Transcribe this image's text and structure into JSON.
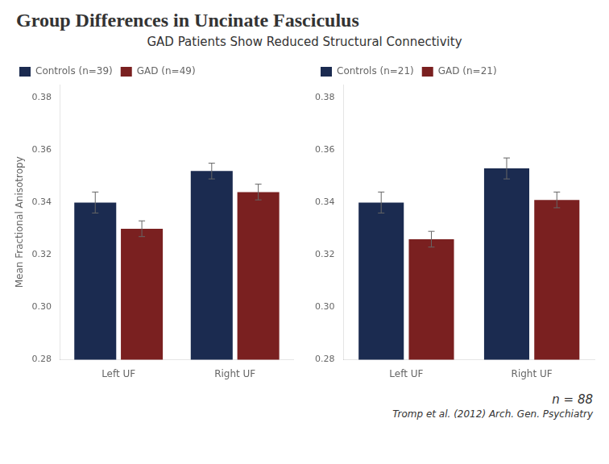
{
  "title": "Group Differences in Uncinate Fasciculus",
  "subtitle": "GAD Patients Show Reduced Structural Connectivity",
  "annotations": [
    "n = 88",
    "Tromp et al. (2012) Arch. Gen. Psychiatry"
  ],
  "chart_data": [
    {
      "type": "bar",
      "y_label": "Mean Fractional Anisotropy",
      "categories": [
        "Left UF",
        "Right UF"
      ],
      "series": [
        {
          "name": "Controls (n=39)",
          "color": "#1B2B50",
          "values": [
            0.34,
            0.352
          ],
          "errors": [
            0.004,
            0.003
          ]
        },
        {
          "name": "GAD (n=49)",
          "color": "#7A2020",
          "values": [
            0.33,
            0.344
          ],
          "errors": [
            0.003,
            0.003
          ]
        }
      ],
      "ylim": [
        0.28,
        0.385
      ],
      "yticks": [
        0.28,
        {
          "value": 0.3,
          "label": "0.30"
        },
        0.32,
        0.34,
        0.36,
        0.38
      ],
      "grid": false,
      "legend": "upper left"
    },
    {
      "type": "bar",
      "categories": [
        "Left UF",
        "Right UF"
      ],
      "series": [
        {
          "name": "Controls (n=21)",
          "color": "#1B2B50",
          "values": [
            0.34,
            0.353
          ],
          "errors": [
            0.004,
            0.004
          ]
        },
        {
          "name": "GAD (n=21)",
          "color": "#7A2020",
          "values": [
            0.326,
            0.341
          ],
          "errors": [
            0.003,
            0.003
          ]
        }
      ],
      "ylim": [
        0.28,
        0.385
      ],
      "yticks": [
        0.28,
        {
          "value": 0.3,
          "label": "0.30"
        },
        0.32,
        0.34,
        0.36,
        0.38
      ],
      "grid": false,
      "legend": "upper left"
    }
  ]
}
